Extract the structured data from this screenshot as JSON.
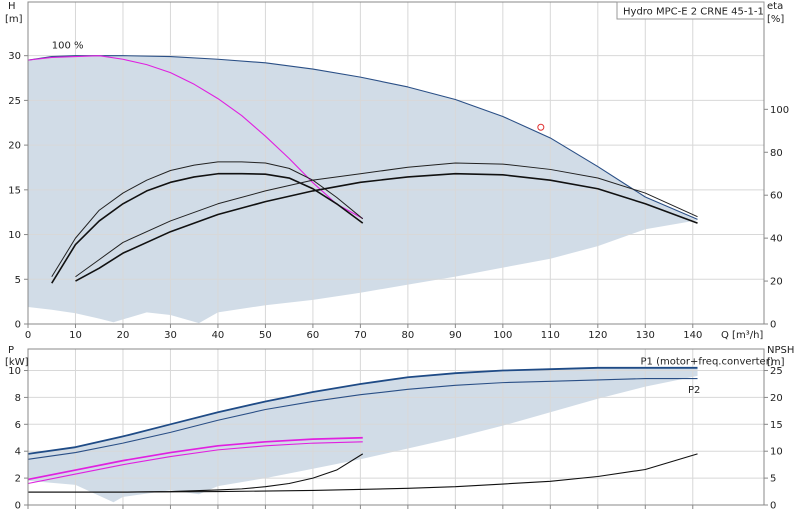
{
  "chart_data": [
    {
      "type": "line",
      "title": "Hydro MPC-E 2 CRNE 45-1-1",
      "left_axis": {
        "name": "H",
        "unit": "[m]",
        "ticks": [
          0,
          5,
          10,
          15,
          20,
          25,
          30
        ]
      },
      "right_axis": {
        "name": "eta",
        "unit": "[%]",
        "ticks": [
          0,
          20,
          40,
          60,
          80,
          100
        ]
      },
      "x_axis": {
        "name": "Q [m³/h]",
        "ticks": [
          0,
          10,
          20,
          30,
          40,
          50,
          60,
          70,
          80,
          90,
          100,
          110,
          120,
          130,
          140
        ],
        "range": [
          0,
          155
        ]
      },
      "ylim": [
        0,
        36
      ],
      "eta_lim": [
        0,
        150
      ],
      "grid": true,
      "annotations": [
        {
          "text": "100 %",
          "x": 5,
          "y": 31.2
        }
      ],
      "envelope": [
        [
          0,
          29.5
        ],
        [
          5,
          29.9
        ],
        [
          10,
          30
        ],
        [
          20,
          30
        ],
        [
          30,
          29.9
        ],
        [
          40,
          29.6
        ],
        [
          50,
          29.2
        ],
        [
          60,
          28.5
        ],
        [
          70,
          27.6
        ],
        [
          80,
          26.5
        ],
        [
          90,
          25.1
        ],
        [
          100,
          23.2
        ],
        [
          110,
          20.8
        ],
        [
          120,
          17.6
        ],
        [
          130,
          14.2
        ],
        [
          141,
          11.6
        ],
        [
          130,
          10.6
        ],
        [
          120,
          8.7
        ],
        [
          110,
          7.3
        ],
        [
          100,
          6.3
        ],
        [
          90,
          5.3
        ],
        [
          80,
          4.4
        ],
        [
          70,
          3.5
        ],
        [
          60,
          2.7
        ],
        [
          50,
          2.1
        ],
        [
          40,
          1.3
        ],
        [
          36,
          0.1
        ],
        [
          30,
          1
        ],
        [
          25,
          1.3
        ],
        [
          18,
          0.2
        ],
        [
          15,
          0.6
        ],
        [
          10,
          1.2
        ],
        [
          5,
          1.6
        ],
        [
          0,
          1.9
        ]
      ],
      "series": [
        {
          "style": "blue",
          "points": [
            [
              0,
              29.5
            ],
            [
              5,
              29.9
            ],
            [
              10,
              30
            ],
            [
              20,
              30
            ],
            [
              30,
              29.9
            ],
            [
              40,
              29.6
            ],
            [
              50,
              29.2
            ],
            [
              60,
              28.5
            ],
            [
              70,
              27.6
            ],
            [
              80,
              26.5
            ],
            [
              90,
              25.1
            ],
            [
              100,
              23.2
            ],
            [
              110,
              20.8
            ],
            [
              120,
              17.6
            ],
            [
              130,
              14.2
            ],
            [
              141,
              11.7
            ]
          ]
        },
        {
          "style": "magenta",
          "points": [
            [
              0,
              29.5
            ],
            [
              5,
              29.8
            ],
            [
              10,
              29.9
            ],
            [
              15,
              30
            ],
            [
              20,
              29.6
            ],
            [
              25,
              29
            ],
            [
              30,
              28.1
            ],
            [
              35,
              26.8
            ],
            [
              40,
              25.2
            ],
            [
              45,
              23.3
            ],
            [
              50,
              21
            ],
            [
              55,
              18.5
            ],
            [
              60,
              15.8
            ],
            [
              65,
              13.4
            ],
            [
              70.5,
              11.8
            ]
          ]
        },
        {
          "style": "black-thin",
          "axis": "eta",
          "points": [
            [
              5,
              22
            ],
            [
              10,
              40
            ],
            [
              15,
              53
            ],
            [
              20,
              61
            ],
            [
              25,
              67
            ],
            [
              30,
              71.5
            ],
            [
              35,
              74
            ],
            [
              40,
              75.5
            ],
            [
              45,
              75.5
            ],
            [
              50,
              75
            ],
            [
              55,
              72.5
            ],
            [
              60,
              67
            ],
            [
              65,
              59
            ],
            [
              70.5,
              49
            ]
          ]
        },
        {
          "style": "black-thick",
          "axis": "eta",
          "points": [
            [
              5,
              19
            ],
            [
              10,
              37
            ],
            [
              15,
              48
            ],
            [
              20,
              56
            ],
            [
              25,
              62
            ],
            [
              30,
              66
            ],
            [
              35,
              68.5
            ],
            [
              40,
              70
            ],
            [
              45,
              70
            ],
            [
              50,
              69.8
            ],
            [
              55,
              68
            ],
            [
              60,
              63
            ],
            [
              65,
              56
            ],
            [
              70.5,
              47
            ]
          ]
        },
        {
          "style": "black-thin",
          "axis": "eta",
          "points": [
            [
              10,
              22
            ],
            [
              15,
              30
            ],
            [
              20,
              38
            ],
            [
              30,
              48
            ],
            [
              40,
              56
            ],
            [
              50,
              62
            ],
            [
              60,
              67
            ],
            [
              70,
              70
            ],
            [
              80,
              73
            ],
            [
              90,
              75
            ],
            [
              100,
              74.5
            ],
            [
              110,
              72
            ],
            [
              120,
              68
            ],
            [
              130,
              61
            ],
            [
              141,
              50
            ]
          ]
        },
        {
          "style": "black-thick",
          "axis": "eta",
          "points": [
            [
              10,
              20
            ],
            [
              15,
              26
            ],
            [
              20,
              33
            ],
            [
              30,
              43
            ],
            [
              40,
              51
            ],
            [
              50,
              57
            ],
            [
              60,
              62
            ],
            [
              70,
              66
            ],
            [
              80,
              68.5
            ],
            [
              90,
              70
            ],
            [
              100,
              69.5
            ],
            [
              110,
              67
            ],
            [
              120,
              63
            ],
            [
              130,
              56
            ],
            [
              141,
              47
            ]
          ]
        }
      ],
      "markers": [
        {
          "x": 108,
          "y": 22,
          "shape": "circle",
          "color": "#e03030"
        }
      ]
    },
    {
      "type": "line",
      "left_axis": {
        "name": "P",
        "unit": "[kW]",
        "ticks": [
          0,
          2,
          4,
          6,
          8,
          10
        ]
      },
      "right_axis": {
        "name": "NPSH",
        "unit": "[m]",
        "ticks": [
          0,
          5,
          10,
          15,
          20,
          25
        ]
      },
      "ylim": [
        0,
        11.6
      ],
      "npsh_lim": [
        0,
        29
      ],
      "grid": true,
      "labels": [
        {
          "text": "P1 (motor+freq.converter)",
          "x": 129,
          "y": 10.7
        },
        {
          "text": "P2",
          "x": 139,
          "y": 8.6
        }
      ],
      "envelope": [
        [
          0,
          3.8
        ],
        [
          10,
          4.3
        ],
        [
          20,
          5.1
        ],
        [
          30,
          6
        ],
        [
          40,
          6.9
        ],
        [
          50,
          7.7
        ],
        [
          60,
          8.4
        ],
        [
          70,
          9
        ],
        [
          80,
          9.5
        ],
        [
          90,
          9.8
        ],
        [
          100,
          10
        ],
        [
          110,
          10.1
        ],
        [
          120,
          10.2
        ],
        [
          130,
          10.2
        ],
        [
          141,
          10.2
        ],
        [
          141,
          9.6
        ],
        [
          130,
          8.8
        ],
        [
          120,
          7.9
        ],
        [
          110,
          6.9
        ],
        [
          100,
          5.9
        ],
        [
          90,
          5
        ],
        [
          80,
          4.2
        ],
        [
          70,
          3.4
        ],
        [
          60,
          2.7
        ],
        [
          50,
          2
        ],
        [
          40,
          1.4
        ],
        [
          36,
          0.8
        ],
        [
          30,
          1.1
        ],
        [
          20,
          0.6
        ],
        [
          18,
          0.2
        ],
        [
          10,
          1.5
        ],
        [
          0,
          1.8
        ]
      ],
      "series": [
        {
          "style": "blue-thick",
          "points": [
            [
              0,
              3.8
            ],
            [
              10,
              4.3
            ],
            [
              20,
              5.1
            ],
            [
              30,
              6
            ],
            [
              40,
              6.9
            ],
            [
              50,
              7.7
            ],
            [
              60,
              8.4
            ],
            [
              70,
              9
            ],
            [
              80,
              9.5
            ],
            [
              90,
              9.8
            ],
            [
              100,
              10
            ],
            [
              110,
              10.1
            ],
            [
              120,
              10.2
            ],
            [
              130,
              10.2
            ],
            [
              141,
              10.2
            ]
          ]
        },
        {
          "style": "blue",
          "points": [
            [
              0,
              3.4
            ],
            [
              10,
              3.9
            ],
            [
              20,
              4.6
            ],
            [
              30,
              5.4
            ],
            [
              40,
              6.3
            ],
            [
              50,
              7.1
            ],
            [
              60,
              7.7
            ],
            [
              70,
              8.2
            ],
            [
              80,
              8.6
            ],
            [
              90,
              8.9
            ],
            [
              100,
              9.1
            ],
            [
              110,
              9.2
            ],
            [
              120,
              9.3
            ],
            [
              130,
              9.4
            ],
            [
              141,
              9.4
            ]
          ]
        },
        {
          "style": "magenta-thick",
          "points": [
            [
              0,
              1.9
            ],
            [
              10,
              2.6
            ],
            [
              20,
              3.3
            ],
            [
              30,
              3.9
            ],
            [
              40,
              4.4
            ],
            [
              50,
              4.7
            ],
            [
              60,
              4.9
            ],
            [
              70.5,
              5
            ]
          ]
        },
        {
          "style": "magenta",
          "points": [
            [
              0,
              1.6
            ],
            [
              10,
              2.3
            ],
            [
              20,
              3
            ],
            [
              30,
              3.6
            ],
            [
              40,
              4.1
            ],
            [
              50,
              4.4
            ],
            [
              60,
              4.6
            ],
            [
              70.5,
              4.7
            ]
          ]
        },
        {
          "style": "black",
          "axis": "npsh",
          "points": [
            [
              0,
              2.4
            ],
            [
              10,
              2.4
            ],
            [
              20,
              2.4
            ],
            [
              30,
              2.5
            ],
            [
              40,
              2.8
            ],
            [
              45,
              3
            ],
            [
              50,
              3.4
            ],
            [
              55,
              4
            ],
            [
              60,
              5
            ],
            [
              65,
              6.5
            ],
            [
              70.5,
              9.5
            ]
          ]
        },
        {
          "style": "black",
          "axis": "npsh",
          "points": [
            [
              0,
              2.4
            ],
            [
              20,
              2.4
            ],
            [
              40,
              2.5
            ],
            [
              60,
              2.7
            ],
            [
              80,
              3.1
            ],
            [
              90,
              3.4
            ],
            [
              100,
              3.9
            ],
            [
              110,
              4.4
            ],
            [
              120,
              5.3
            ],
            [
              130,
              6.6
            ],
            [
              141,
              9.5
            ]
          ]
        }
      ]
    }
  ]
}
